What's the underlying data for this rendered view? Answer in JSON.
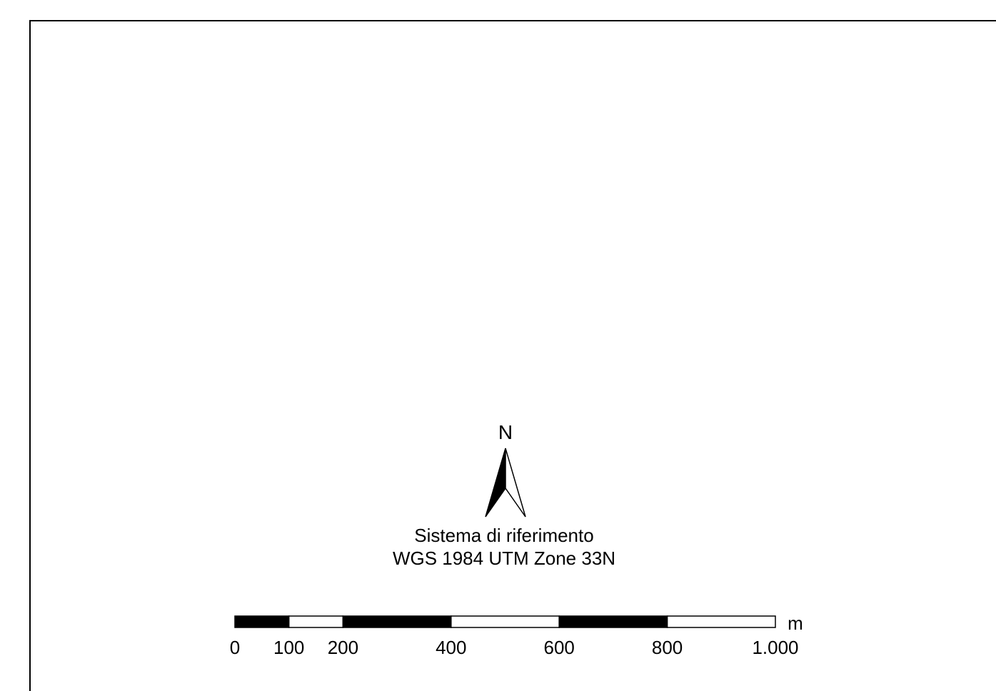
{
  "north_arrow": {
    "label": "N",
    "icon": "north-arrow-icon"
  },
  "reference_system": {
    "line1": "Sistema di riferimento",
    "line2": "WGS 1984 UTM Zone 33N"
  },
  "scale_bar": {
    "unit": "m",
    "segments": [
      0,
      100,
      200,
      400,
      600,
      800,
      1000
    ],
    "tick_labels": [
      "0",
      "100",
      "200",
      "400",
      "600",
      "800",
      "1.000"
    ]
  }
}
